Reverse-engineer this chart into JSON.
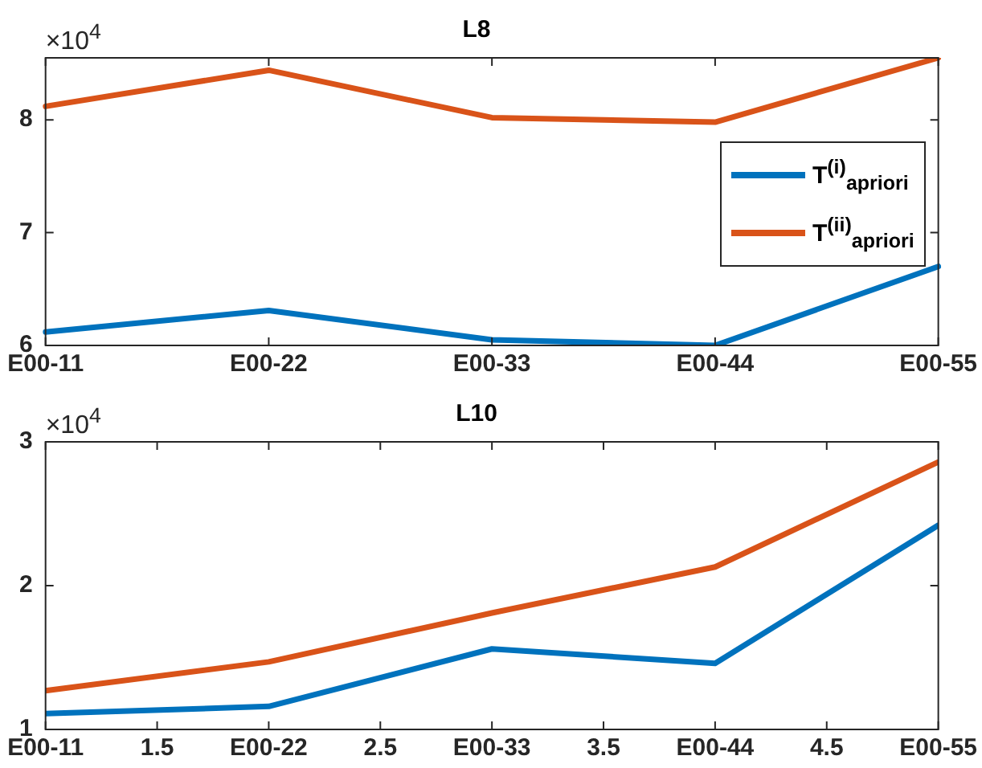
{
  "chart_data": [
    {
      "type": "line",
      "title": "L8",
      "annotations": [
        "×10$^{4}$"
      ],
      "categories": [
        "E00-11",
        "E00-22",
        "E00-33",
        "E00-44",
        "E00-55"
      ],
      "ylim": [
        6,
        8.55
      ],
      "yticks": [
        6,
        7,
        8
      ],
      "grid": false,
      "legend": "right",
      "series": [
        {
          "name": "T$^{(i)}$$_{apriori}$",
          "color": "#0072bd",
          "values": [
            6.12,
            6.31,
            6.05,
            6.0,
            6.7
          ]
        },
        {
          "name": "T$^{(ii)}$$_{apriori}$",
          "color": "#d95319",
          "values": [
            8.12,
            8.44,
            8.02,
            7.98,
            8.55
          ]
        }
      ]
    },
    {
      "type": "line",
      "title": "L10",
      "annotations": [
        "×10$^{4}$"
      ],
      "x": [
        1,
        2,
        3,
        4,
        5
      ],
      "xlim": [
        1,
        5
      ],
      "xticks": [
        {
          "value": 1,
          "label": "E00-11"
        },
        1.5,
        {
          "value": 2,
          "label": "E00-22"
        },
        2.5,
        {
          "value": 3,
          "label": "E00-33"
        },
        3.5,
        {
          "value": 4,
          "label": "E00-44"
        },
        4.5,
        {
          "value": 5,
          "label": "E00-55"
        }
      ],
      "ylim": [
        1,
        3
      ],
      "yticks": [
        1,
        2,
        3
      ],
      "grid": false,
      "series": [
        {
          "color": "#0072bd",
          "values": [
            1.11,
            1.16,
            1.56,
            1.46,
            2.42
          ]
        },
        {
          "color": "#d95319",
          "values": [
            1.27,
            1.47,
            1.81,
            2.13,
            2.86
          ]
        }
      ]
    }
  ]
}
